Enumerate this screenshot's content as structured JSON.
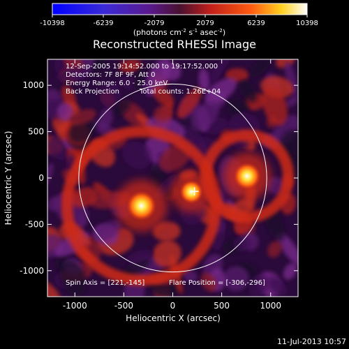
{
  "chart_data": {
    "type": "heatmap",
    "title": "Reconstructed RHESSI Image",
    "xlabel": "Heliocentric X (arcsec)",
    "ylabel": "Heliocentric Y (arcsec)",
    "xlim": [
      -1280,
      1280
    ],
    "ylim": [
      -1280,
      1280
    ],
    "xticks": [
      -1000,
      -500,
      0,
      500,
      1000
    ],
    "yticks": [
      -1000,
      -500,
      0,
      500,
      1000
    ],
    "colorbar": {
      "min": -10398,
      "max": 10398,
      "ticks": [
        "-10398",
        "-6239",
        "-2079",
        "2079",
        "6239",
        "10398"
      ],
      "unit_prefix": "(photons cm",
      "unit_exp1": "-2",
      "unit_mid": " s",
      "unit_exp2": "-1",
      "unit_mid2": " asec",
      "unit_exp3": "-2",
      "unit_suffix": ")"
    },
    "annotations": {
      "time_range": "12-Sep-2005 19:14:52.000 to 19:17:52.000",
      "detectors": "Detectors: 7F 8F 9F, Att 0",
      "energy": "Energy Range: 6.0 - 25.0 keV",
      "method": "Back Projection",
      "counts": "Total counts: 1.26E+04",
      "spin_axis": "Spin Axis = [221,-145]",
      "flare_position": "Flare Position = [-306,-296]"
    },
    "features": {
      "sources": [
        {
          "x": -320,
          "y": -300,
          "intensity": 10398
        },
        {
          "x": 760,
          "y": 20,
          "intensity": 9000
        },
        {
          "x": 190,
          "y": -150,
          "intensity": 7000
        }
      ],
      "rings": [
        {
          "x": -320,
          "y": -300,
          "radius": 760,
          "intensity": 5200
        },
        {
          "x": 760,
          "y": 20,
          "radius": 420,
          "intensity": 4800
        }
      ],
      "spin_axis_marker": {
        "x": 221,
        "y": -145
      },
      "solar_limb": {
        "x": 0,
        "y": 0,
        "radius": 960
      }
    }
  },
  "footer": {
    "date": "11-Jul-2013 10:57"
  }
}
